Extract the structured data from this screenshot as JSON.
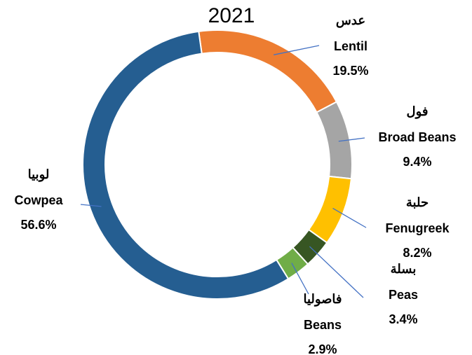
{
  "chart_data": {
    "type": "donut",
    "title": "2021",
    "categories": [
      "Lentil",
      "Broad Beans",
      "Fenugreek",
      "Peas",
      "Beans",
      "Cowpea"
    ],
    "arabic_names": [
      "عدس",
      "فول",
      "حلبة",
      "بسلة",
      "فاصوليا",
      "لوبيا"
    ],
    "values": [
      19.5,
      9.4,
      8.2,
      3.4,
      2.9,
      56.6
    ],
    "value_labels": [
      "19.5%",
      "9.4%",
      "8.2%",
      "3.4%",
      "2.9%",
      "56.6%"
    ],
    "colors": [
      "#ed7d31",
      "#a5a5a5",
      "#ffc000",
      "#375623",
      "#70ad47",
      "#255e91"
    ]
  }
}
